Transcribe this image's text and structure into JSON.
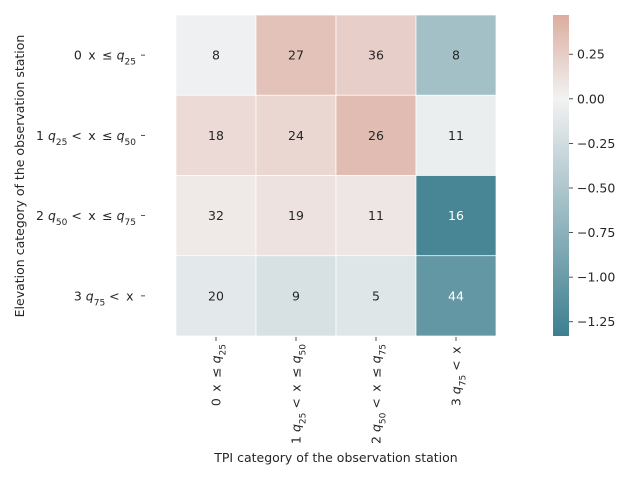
{
  "chart_data": {
    "type": "heatmap",
    "xlabel": "TPI category of the observation station",
    "ylabel": "Elevation category of the observation station",
    "x_categories": [
      {
        "num": "0",
        "expr": "x ≤ q25"
      },
      {
        "num": "1",
        "expr": "q25 < x ≤ q50"
      },
      {
        "num": "2",
        "expr": "q50 < x ≤ q75"
      },
      {
        "num": "3",
        "expr": "q75 < x"
      }
    ],
    "y_categories": [
      {
        "num": "0",
        "expr": "x ≤ q25"
      },
      {
        "num": "1",
        "expr": "q25 < x ≤ q50"
      },
      {
        "num": "2",
        "expr": "q50 < x ≤ q75"
      },
      {
        "num": "3",
        "expr": "q75 < x"
      }
    ],
    "cell_labels": [
      [
        "8",
        "27",
        "36",
        "8"
      ],
      [
        "18",
        "24",
        "26",
        "11"
      ],
      [
        "32",
        "19",
        "11",
        "16"
      ],
      [
        "20",
        "9",
        "5",
        "44"
      ]
    ],
    "color_values": [
      [
        -0.02,
        0.32,
        0.24,
        -0.58
      ],
      [
        0.16,
        0.18,
        0.36,
        -0.05
      ],
      [
        0.06,
        0.11,
        0.08,
        -1.25
      ],
      [
        -0.11,
        -0.2,
        -0.14,
        -1.05
      ]
    ],
    "colorbar": {
      "range": [
        -1.33,
        0.47
      ],
      "ticks": [
        0.25,
        0.0,
        -0.25,
        -0.5,
        -0.75,
        -1.0,
        -1.25
      ],
      "tick_labels": [
        "0.25",
        "0.00",
        "−0.25",
        "−0.50",
        "−0.75",
        "−1.00",
        "−1.25"
      ],
      "neg_color": "#3d7f8f",
      "mid_color": "#f2f2f2",
      "pos_color": "#dcac9f"
    }
  }
}
